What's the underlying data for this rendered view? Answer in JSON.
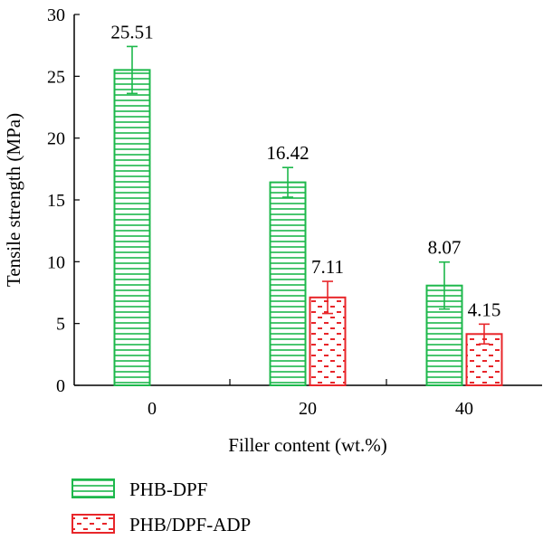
{
  "chart_data": {
    "type": "bar",
    "xlabel": "Filler content (wt.%)",
    "ylabel": "Tensile strength (MPa)",
    "ylim": [
      0,
      30
    ],
    "yticks": [
      0,
      5,
      10,
      15,
      20,
      25,
      30
    ],
    "categories": [
      "0",
      "20",
      "40"
    ],
    "series": [
      {
        "name": "PHB-DPF",
        "color": "#1db84b",
        "pattern": "horizontal-lines",
        "values": [
          25.51,
          16.42,
          8.07
        ],
        "errors": [
          1.9,
          1.2,
          1.9
        ],
        "labels": [
          "25.51",
          "16.42",
          "8.07"
        ]
      },
      {
        "name": "PHB/DPF-ADP",
        "color": "#e8262a",
        "pattern": "dashed-lines",
        "values": [
          null,
          7.11,
          4.15
        ],
        "errors": [
          null,
          1.3,
          0.8
        ],
        "labels": [
          "",
          "7.11",
          "4.15"
        ]
      }
    ],
    "legend_placement": "bottom-left",
    "grid": false
  }
}
